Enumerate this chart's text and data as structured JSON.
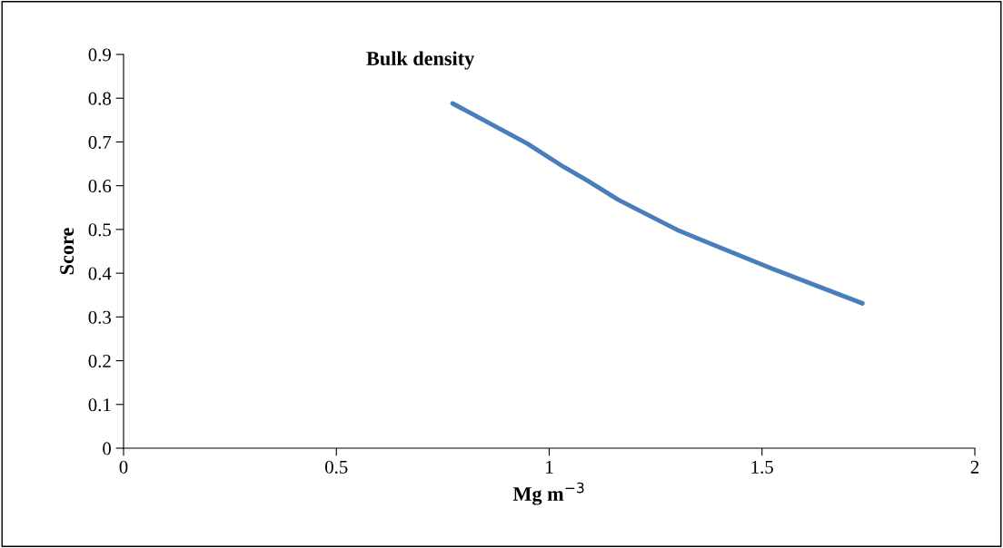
{
  "chart_data": {
    "type": "line",
    "title": "Bulk density",
    "xlabel": "Mg m$^{−3}$",
    "ylabel": "Score",
    "x": [
      0.773,
      0.949,
      1.034,
      1.091,
      1.162,
      1.305,
      1.519,
      1.736
    ],
    "series": [
      {
        "color": "#4a7ebb",
        "values": [
          0.788,
          0.696,
          0.643,
          0.611,
          0.568,
          0.497,
          0.412,
          0.331
        ]
      }
    ],
    "xlim": [
      0,
      2
    ],
    "xticks": [
      0,
      0.5,
      1,
      1.5,
      2
    ],
    "ylim": [
      0,
      0.9
    ],
    "yticks": [
      0,
      0.1,
      0.2,
      0.3,
      0.4,
      0.5,
      0.6,
      0.7,
      0.8,
      0.9
    ],
    "grid": false,
    "legend": false,
    "marker": "none",
    "line_style": "solid"
  }
}
